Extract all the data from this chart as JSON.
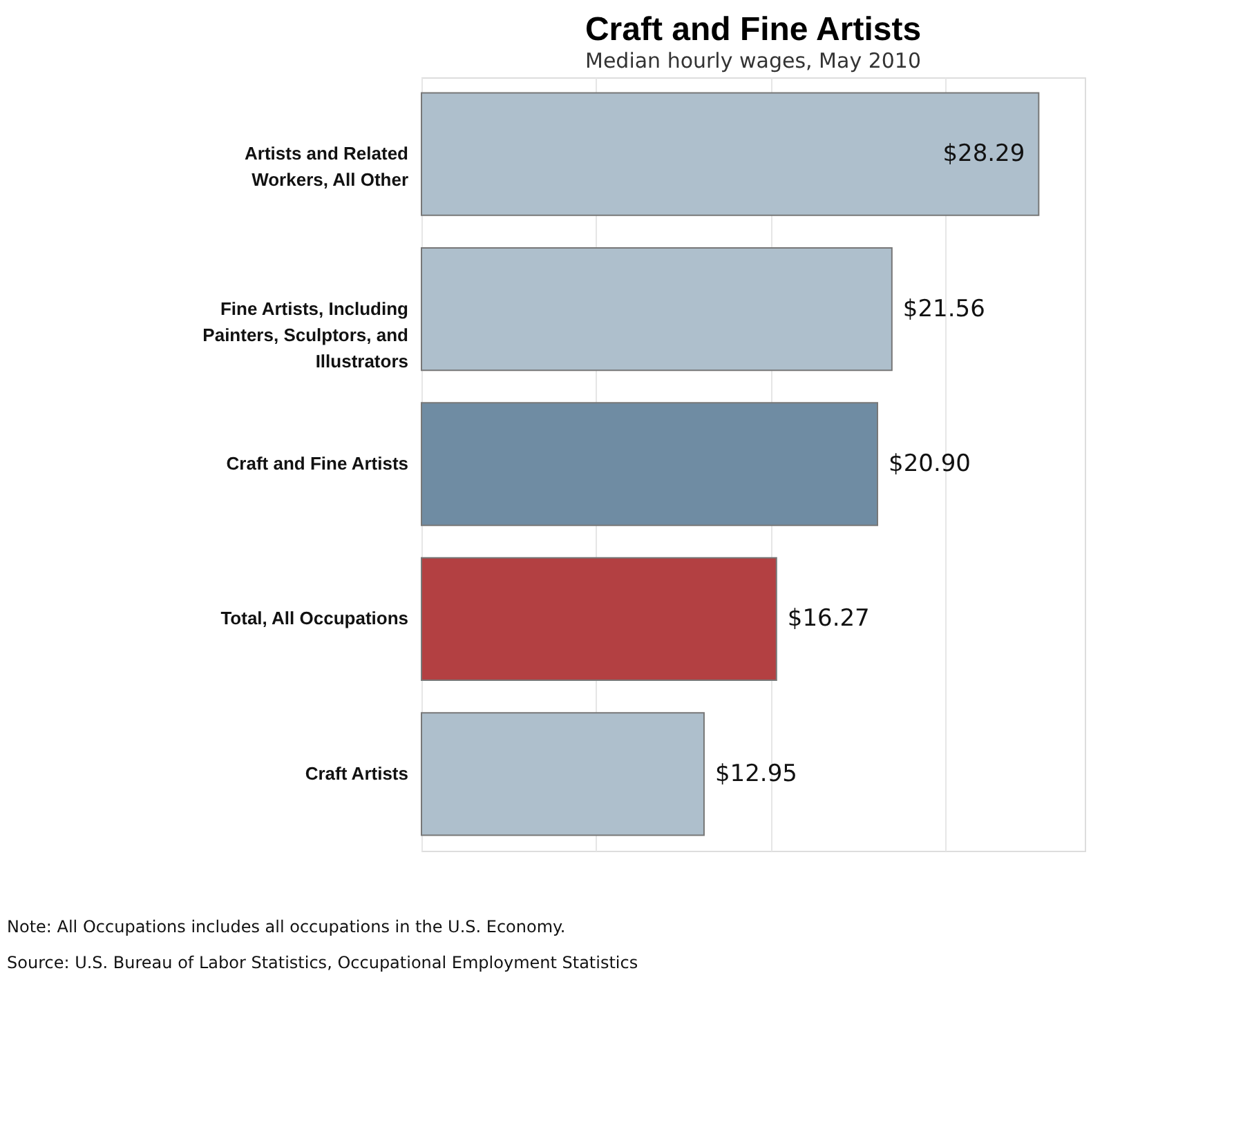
{
  "chart_data": {
    "type": "bar",
    "orientation": "horizontal",
    "title": "Craft and Fine Artists",
    "subtitle": "Median hourly wages, May 2010",
    "categories": [
      "Artists and Related Workers, All Other",
      "Fine Artists, Including Painters, Sculptors, and Illustrators",
      "Craft and Fine Artists",
      "Total, All Occupations",
      "Craft Artists"
    ],
    "values": [
      28.29,
      21.56,
      20.9,
      16.27,
      12.95
    ],
    "colors": [
      "#aebfcc",
      "#aebfcc",
      "#6f8ca3",
      "#b34042",
      "#aebfcc"
    ],
    "value_labels": [
      "$28.29",
      "$21.56",
      "$20.90",
      "$16.27",
      "$12.95"
    ],
    "xlim": [
      0,
      30.4
    ],
    "xticks": [
      {
        "value": 0,
        "label": null
      },
      {
        "value": 8,
        "label": null
      },
      {
        "value": 16,
        "label": null
      },
      {
        "value": 24,
        "label": null
      }
    ],
    "grid": "x",
    "tick_labels": "y",
    "annotations": [
      "Note: All Occupations includes all occupations in the U.S. Economy.",
      "Source: U.S. Bureau of Labor Statistics, Occupational Employment Statistics"
    ]
  }
}
